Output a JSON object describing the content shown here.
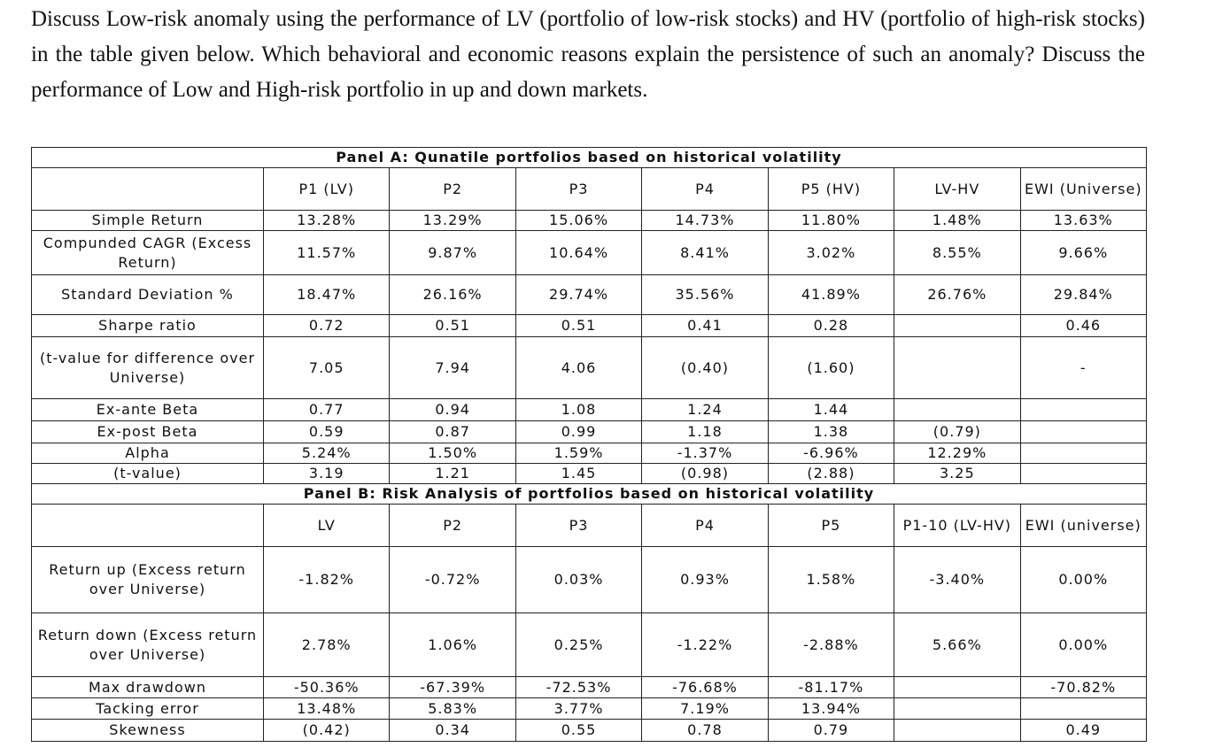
{
  "question": "Discuss Low-risk anomaly using the performance of LV (portfolio of low-risk stocks) and HV (portfolio of high-risk stocks) in the table given below. Which behavioral and economic reasons explain the persistence of such an anomaly? Discuss the performance of Low and High-risk portfolio in up and down markets.",
  "panels": [
    {
      "title": "Panel A: Qunatile portfolios based on historical volatility",
      "headers": [
        "P1 (LV)",
        "P2",
        "P3",
        "P4",
        "P5 (HV)",
        "LV-HV",
        "EWI (Universe)"
      ],
      "rows": [
        {
          "label": "Simple Return",
          "cells": [
            "13.28%",
            "13.29%",
            "15.06%",
            "14.73%",
            "11.80%",
            "1.48%",
            "13.63%"
          ]
        },
        {
          "label": "Compunded CAGR (Excess Return)",
          "cells": [
            "11.57%",
            "9.87%",
            "10.64%",
            "8.41%",
            "3.02%",
            "8.55%",
            "9.66%"
          ]
        },
        {
          "label": "Standard Deviation %",
          "cells": [
            "18.47%",
            "26.16%",
            "29.74%",
            "35.56%",
            "41.89%",
            "26.76%",
            "29.84%"
          ]
        },
        {
          "label": "Sharpe ratio",
          "cells": [
            "0.72",
            "0.51",
            "0.51",
            "0.41",
            "0.28",
            null,
            "0.46"
          ]
        },
        {
          "label": "(t-value for difference over Universe)",
          "cells": [
            "7.05",
            "7.94",
            "4.06",
            "(0.40)",
            "(1.60)",
            null,
            "-"
          ]
        },
        {
          "label": "Ex-ante Beta",
          "cells": [
            "0.77",
            "0.94",
            "1.08",
            "1.24",
            "1.44",
            null,
            null
          ]
        },
        {
          "label": "Ex-post Beta",
          "cells": [
            "0.59",
            "0.87",
            "0.99",
            "1.18",
            "1.38",
            "(0.79)",
            null
          ]
        },
        {
          "label": "Alpha",
          "cells": [
            "5.24%",
            "1.50%",
            "1.59%",
            "-1.37%",
            "-6.96%",
            "12.29%",
            null
          ]
        },
        {
          "label": "(t-value)",
          "cells": [
            "3.19",
            "1.21",
            "1.45",
            "(0.98)",
            "(2.88)",
            "3.25",
            null
          ]
        }
      ]
    },
    {
      "title": "Panel B: Risk Analysis of portfolios based on historical volatility",
      "headers": [
        "LV",
        "P2",
        "P3",
        "P4",
        "P5",
        "P1-10 (LV-HV)",
        "EWI (universe)"
      ],
      "rows": [
        {
          "label": "Return up (Excess return over Universe)",
          "cells": [
            "-1.82%",
            "-0.72%",
            "0.03%",
            "0.93%",
            "1.58%",
            "-3.40%",
            "0.00%"
          ]
        },
        {
          "label": "Return down (Excess return over Universe)",
          "cells": [
            "2.78%",
            "1.06%",
            "0.25%",
            "-1.22%",
            "-2.88%",
            "5.66%",
            "0.00%"
          ]
        },
        {
          "label": "Max drawdown",
          "cells": [
            "-50.36%",
            "-67.39%",
            "-72.53%",
            "-76.68%",
            "-81.17%",
            null,
            "-70.82%"
          ]
        },
        {
          "label": "Tacking error",
          "cells": [
            "13.48%",
            "5.83%",
            "3.77%",
            "7.19%",
            "13.94%",
            null,
            null
          ]
        },
        {
          "label": "Skewness",
          "cells": [
            "(0.42)",
            "0.34",
            "0.55",
            "0.78",
            "0.79",
            null,
            "0.49"
          ]
        }
      ]
    }
  ]
}
